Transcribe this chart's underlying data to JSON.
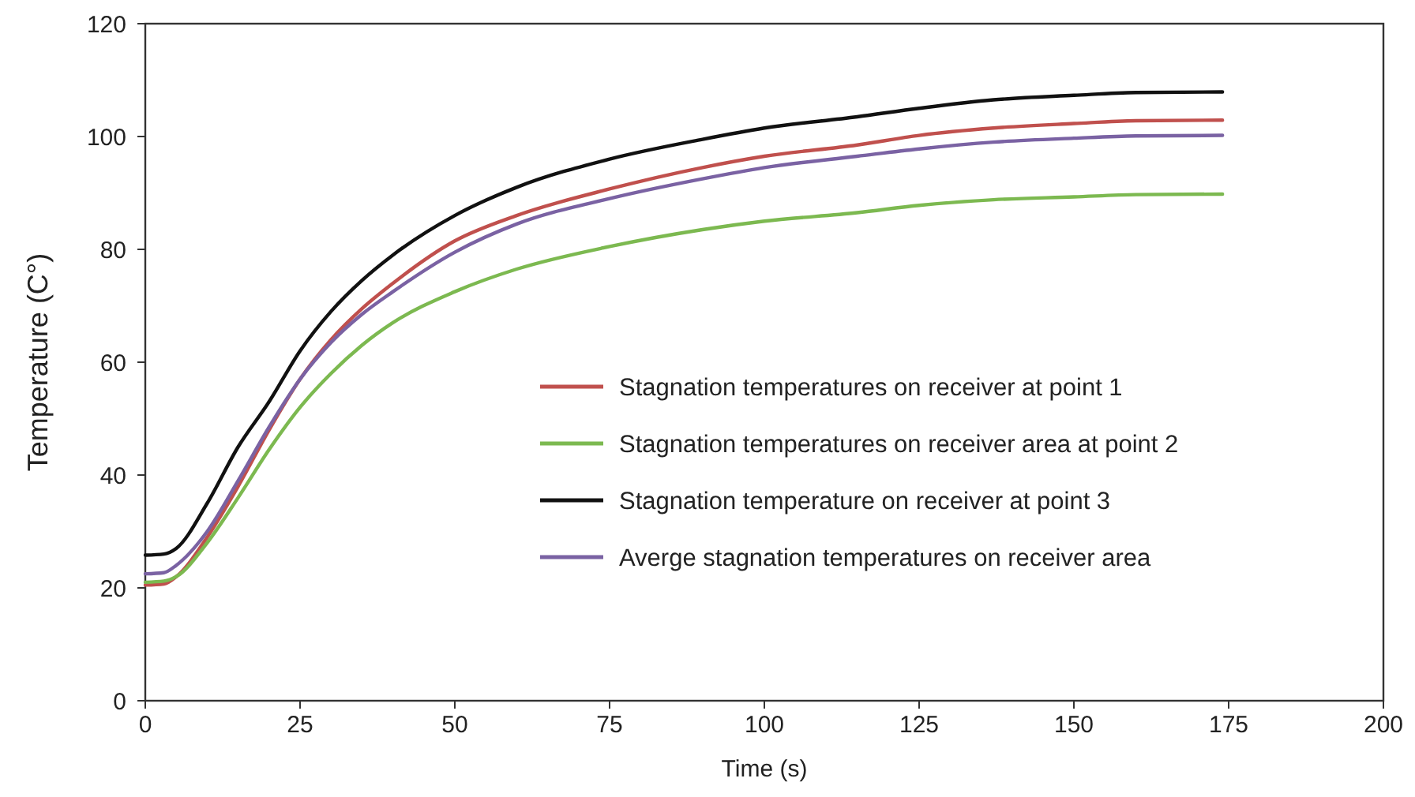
{
  "chart_data": {
    "type": "line",
    "xlabel": "Time (s)",
    "ylabel": "Temperature (C°)",
    "xlim": [
      0,
      200
    ],
    "xticks": [
      0,
      25,
      50,
      75,
      100,
      125,
      150,
      175,
      200
    ],
    "ylim": [
      0,
      120
    ],
    "yticks": [
      0,
      20,
      40,
      60,
      80,
      100,
      120
    ],
    "grid": false,
    "legend": "right",
    "marker": "none",
    "line_style": "solid",
    "x": [
      0,
      3,
      5,
      10,
      15,
      20,
      25,
      30,
      35,
      40,
      50,
      60,
      75,
      90,
      100,
      115,
      125,
      137,
      150,
      160,
      174
    ],
    "series": [
      {
        "name": "Stagnation temperatures on receiver at point 1",
        "color": "#c0504d",
        "values": [
          20.5,
          20.7,
          22,
          29,
          38,
          48,
          57,
          64,
          69.5,
          74,
          81.5,
          86,
          90.7,
          94.5,
          96.5,
          98.5,
          100.2,
          101.5,
          102.3,
          102.8,
          102.9
        ]
      },
      {
        "name": "Stagnation temperatures on receiver area at point 2",
        "color": "#7cb950",
        "values": [
          21,
          21.2,
          22,
          28,
          36,
          44.5,
          52,
          58,
          63,
          67,
          72.5,
          76.5,
          80.5,
          83.5,
          85,
          86.5,
          87.8,
          88.8,
          89.3,
          89.7,
          89.8
        ]
      },
      {
        "name": "Stagnation temperature on receiver at point 3",
        "color": "#111111",
        "values": [
          25.8,
          26,
          27,
          35,
          45,
          53,
          62,
          69,
          74.5,
          79,
          86,
          91,
          96,
          99.5,
          101.5,
          103.5,
          105,
          106.5,
          107.3,
          107.8,
          107.9
        ]
      },
      {
        "name": "Averge stagnation temperatures on receiver area",
        "color": "#7a62a3",
        "values": [
          22.5,
          22.7,
          24,
          30,
          39,
          48.5,
          57,
          63.5,
          68.5,
          72.5,
          79.5,
          84.5,
          89,
          92.5,
          94.5,
          96.5,
          97.8,
          99,
          99.7,
          100.1,
          100.2
        ]
      }
    ]
  }
}
